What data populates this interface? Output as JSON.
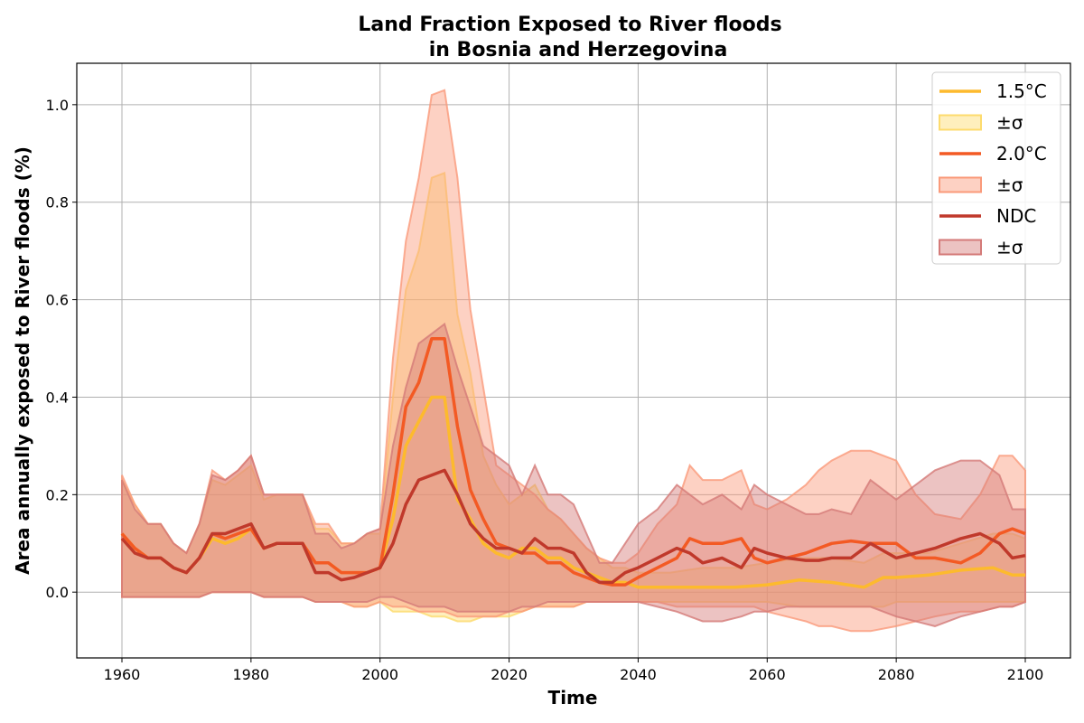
{
  "chart_data": {
    "type": "line",
    "title": "Land Fraction Exposed to River floods",
    "subtitle": "in Bosnia and Herzegovina",
    "xlabel": "Time",
    "ylabel": "Area annually exposed to River floods (%)",
    "xlim": [
      1953,
      2107
    ],
    "ylim": [
      -0.135,
      1.085
    ],
    "xticks": [
      1960,
      1980,
      2000,
      2020,
      2040,
      2060,
      2080,
      2100
    ],
    "yticks": [
      0.0,
      0.2,
      0.4,
      0.6,
      0.8,
      1.0
    ],
    "ytick_labels": [
      "0.0",
      "0.2",
      "0.4",
      "0.6",
      "0.8",
      "1.0"
    ],
    "grid": true,
    "legend_position": "top-right",
    "legend": [
      {
        "label": "1.5°C",
        "kind": "line",
        "series": 0
      },
      {
        "label": "±σ",
        "kind": "band",
        "series": 0
      },
      {
        "label": "2.0°C",
        "kind": "line",
        "series": 1
      },
      {
        "label": "±σ",
        "kind": "band",
        "series": 1
      },
      {
        "label": "NDC",
        "kind": "line",
        "series": 2
      },
      {
        "label": "±σ",
        "kind": "band",
        "series": 2
      }
    ],
    "series": [
      {
        "name": "1.5°C",
        "color": "#FDBA2D",
        "band_color": "#FDDB6D",
        "x": [
          1960,
          1962,
          1964,
          1966,
          1968,
          1970,
          1972,
          1974,
          1976,
          1978,
          1980,
          1982,
          1984,
          1986,
          1988,
          1990,
          1992,
          1994,
          1996,
          1998,
          2000,
          2002,
          2004,
          2006,
          2008,
          2010,
          2012,
          2014,
          2016,
          2018,
          2020,
          2022,
          2024,
          2026,
          2028,
          2030,
          2032,
          2034,
          2036,
          2038,
          2040,
          2045,
          2050,
          2055,
          2060,
          2065,
          2070,
          2075,
          2078,
          2080,
          2085,
          2090,
          2095,
          2098,
          2100
        ],
        "mean": [
          0.12,
          0.09,
          0.07,
          0.07,
          0.05,
          0.04,
          0.07,
          0.11,
          0.1,
          0.11,
          0.13,
          0.09,
          0.1,
          0.1,
          0.1,
          0.06,
          0.06,
          0.04,
          0.04,
          0.04,
          0.05,
          0.15,
          0.3,
          0.35,
          0.4,
          0.4,
          0.19,
          0.15,
          0.1,
          0.08,
          0.07,
          0.09,
          0.09,
          0.07,
          0.07,
          0.05,
          0.04,
          0.03,
          0.02,
          0.02,
          0.01,
          0.01,
          0.01,
          0.01,
          0.015,
          0.025,
          0.02,
          0.01,
          0.03,
          0.03,
          0.035,
          0.045,
          0.05,
          0.035,
          0.035
        ],
        "upper": [
          0.23,
          0.18,
          0.14,
          0.14,
          0.1,
          0.08,
          0.14,
          0.23,
          0.22,
          0.24,
          0.26,
          0.19,
          0.2,
          0.2,
          0.2,
          0.13,
          0.13,
          0.1,
          0.1,
          0.12,
          0.12,
          0.4,
          0.62,
          0.7,
          0.85,
          0.86,
          0.57,
          0.45,
          0.28,
          0.22,
          0.18,
          0.2,
          0.22,
          0.17,
          0.15,
          0.12,
          0.09,
          0.07,
          0.05,
          0.05,
          0.04,
          0.04,
          0.05,
          0.05,
          0.06,
          0.07,
          0.07,
          0.06,
          0.08,
          0.08,
          0.08,
          0.1,
          0.12,
          0.12,
          0.11
        ],
        "lower": [
          -0.01,
          -0.01,
          -0.01,
          -0.01,
          -0.01,
          -0.01,
          -0.01,
          0.0,
          0.0,
          0.0,
          0.0,
          -0.01,
          -0.01,
          -0.01,
          -0.01,
          -0.02,
          -0.02,
          -0.02,
          -0.03,
          -0.03,
          -0.02,
          -0.04,
          -0.04,
          -0.04,
          -0.05,
          -0.05,
          -0.06,
          -0.06,
          -0.05,
          -0.05,
          -0.05,
          -0.04,
          -0.03,
          -0.03,
          -0.03,
          -0.03,
          -0.02,
          -0.02,
          -0.02,
          -0.02,
          -0.02,
          -0.02,
          -0.02,
          -0.02,
          -0.02,
          -0.03,
          -0.03,
          -0.03,
          -0.03,
          -0.02,
          -0.02,
          -0.02,
          -0.02,
          -0.02,
          -0.02
        ]
      },
      {
        "name": "2.0°C",
        "color": "#F35A24",
        "band_color": "#FA9A7A",
        "x": [
          1960,
          1962,
          1964,
          1966,
          1968,
          1970,
          1972,
          1974,
          1976,
          1978,
          1980,
          1982,
          1984,
          1986,
          1988,
          1990,
          1992,
          1994,
          1996,
          1998,
          2000,
          2002,
          2004,
          2006,
          2008,
          2010,
          2012,
          2014,
          2016,
          2018,
          2020,
          2022,
          2024,
          2026,
          2028,
          2030,
          2032,
          2034,
          2036,
          2038,
          2040,
          2043,
          2046,
          2048,
          2050,
          2053,
          2056,
          2058,
          2060,
          2063,
          2066,
          2068,
          2070,
          2073,
          2076,
          2080,
          2083,
          2086,
          2090,
          2093,
          2096,
          2098,
          2100
        ],
        "mean": [
          0.12,
          0.09,
          0.07,
          0.07,
          0.05,
          0.04,
          0.07,
          0.12,
          0.11,
          0.12,
          0.13,
          0.09,
          0.1,
          0.1,
          0.1,
          0.06,
          0.06,
          0.04,
          0.04,
          0.04,
          0.05,
          0.2,
          0.38,
          0.43,
          0.52,
          0.52,
          0.34,
          0.21,
          0.15,
          0.1,
          0.09,
          0.08,
          0.08,
          0.06,
          0.06,
          0.04,
          0.03,
          0.02,
          0.015,
          0.015,
          0.03,
          0.05,
          0.07,
          0.11,
          0.1,
          0.1,
          0.11,
          0.07,
          0.06,
          0.07,
          0.08,
          0.09,
          0.1,
          0.105,
          0.1,
          0.1,
          0.07,
          0.07,
          0.06,
          0.08,
          0.12,
          0.13,
          0.12
        ],
        "upper": [
          0.24,
          0.18,
          0.14,
          0.14,
          0.1,
          0.08,
          0.14,
          0.25,
          0.23,
          0.25,
          0.28,
          0.2,
          0.2,
          0.2,
          0.2,
          0.14,
          0.14,
          0.1,
          0.1,
          0.12,
          0.13,
          0.48,
          0.72,
          0.85,
          1.02,
          1.03,
          0.85,
          0.58,
          0.42,
          0.26,
          0.24,
          0.22,
          0.2,
          0.17,
          0.15,
          0.12,
          0.09,
          0.07,
          0.06,
          0.06,
          0.08,
          0.14,
          0.18,
          0.26,
          0.23,
          0.23,
          0.25,
          0.18,
          0.17,
          0.19,
          0.22,
          0.25,
          0.27,
          0.29,
          0.29,
          0.27,
          0.2,
          0.16,
          0.15,
          0.2,
          0.28,
          0.28,
          0.25
        ],
        "lower": [
          -0.01,
          -0.01,
          -0.01,
          -0.01,
          -0.01,
          -0.01,
          -0.01,
          0.0,
          0.0,
          0.0,
          0.0,
          -0.01,
          -0.01,
          -0.01,
          -0.01,
          -0.02,
          -0.02,
          -0.02,
          -0.03,
          -0.03,
          -0.02,
          -0.03,
          -0.03,
          -0.04,
          -0.04,
          -0.04,
          -0.05,
          -0.05,
          -0.05,
          -0.05,
          -0.04,
          -0.04,
          -0.03,
          -0.03,
          -0.03,
          -0.03,
          -0.02,
          -0.02,
          -0.02,
          -0.02,
          -0.02,
          -0.02,
          -0.03,
          -0.03,
          -0.03,
          -0.03,
          -0.03,
          -0.03,
          -0.04,
          -0.05,
          -0.06,
          -0.07,
          -0.07,
          -0.08,
          -0.08,
          -0.07,
          -0.06,
          -0.05,
          -0.04,
          -0.04,
          -0.03,
          -0.03,
          -0.02
        ]
      },
      {
        "name": "NDC",
        "color": "#C0392B",
        "band_color": "#D47A78",
        "x": [
          1960,
          1962,
          1964,
          1966,
          1968,
          1970,
          1972,
          1974,
          1976,
          1978,
          1980,
          1982,
          1984,
          1986,
          1988,
          1990,
          1992,
          1994,
          1996,
          1998,
          2000,
          2002,
          2004,
          2006,
          2008,
          2010,
          2012,
          2014,
          2016,
          2018,
          2020,
          2022,
          2024,
          2026,
          2028,
          2030,
          2032,
          2034,
          2036,
          2038,
          2040,
          2043,
          2046,
          2048,
          2050,
          2053,
          2056,
          2058,
          2060,
          2063,
          2066,
          2068,
          2070,
          2073,
          2076,
          2080,
          2083,
          2086,
          2090,
          2093,
          2096,
          2098,
          2100
        ],
        "mean": [
          0.11,
          0.08,
          0.07,
          0.07,
          0.05,
          0.04,
          0.07,
          0.12,
          0.12,
          0.13,
          0.14,
          0.09,
          0.1,
          0.1,
          0.1,
          0.04,
          0.04,
          0.025,
          0.03,
          0.04,
          0.05,
          0.1,
          0.18,
          0.23,
          0.24,
          0.25,
          0.2,
          0.14,
          0.11,
          0.09,
          0.09,
          0.08,
          0.11,
          0.09,
          0.09,
          0.08,
          0.04,
          0.02,
          0.02,
          0.04,
          0.05,
          0.07,
          0.09,
          0.08,
          0.06,
          0.07,
          0.05,
          0.09,
          0.08,
          0.07,
          0.065,
          0.065,
          0.07,
          0.07,
          0.1,
          0.07,
          0.08,
          0.09,
          0.11,
          0.12,
          0.1,
          0.07,
          0.075
        ],
        "upper": [
          0.23,
          0.17,
          0.14,
          0.14,
          0.1,
          0.08,
          0.14,
          0.24,
          0.23,
          0.25,
          0.28,
          0.2,
          0.2,
          0.2,
          0.2,
          0.12,
          0.12,
          0.09,
          0.1,
          0.12,
          0.13,
          0.3,
          0.42,
          0.51,
          0.53,
          0.55,
          0.46,
          0.38,
          0.3,
          0.28,
          0.26,
          0.2,
          0.26,
          0.2,
          0.2,
          0.18,
          0.12,
          0.06,
          0.06,
          0.1,
          0.14,
          0.17,
          0.22,
          0.2,
          0.18,
          0.2,
          0.17,
          0.22,
          0.2,
          0.18,
          0.16,
          0.16,
          0.17,
          0.16,
          0.23,
          0.19,
          0.22,
          0.25,
          0.27,
          0.27,
          0.24,
          0.17,
          0.17
        ],
        "lower": [
          -0.01,
          -0.01,
          -0.01,
          -0.01,
          -0.01,
          -0.01,
          -0.01,
          0.0,
          0.0,
          0.0,
          0.0,
          -0.01,
          -0.01,
          -0.01,
          -0.01,
          -0.02,
          -0.02,
          -0.02,
          -0.02,
          -0.02,
          -0.01,
          -0.01,
          -0.02,
          -0.03,
          -0.03,
          -0.03,
          -0.04,
          -0.04,
          -0.04,
          -0.04,
          -0.04,
          -0.03,
          -0.03,
          -0.02,
          -0.02,
          -0.02,
          -0.02,
          -0.02,
          -0.02,
          -0.02,
          -0.02,
          -0.03,
          -0.04,
          -0.05,
          -0.06,
          -0.06,
          -0.05,
          -0.04,
          -0.04,
          -0.03,
          -0.03,
          -0.03,
          -0.03,
          -0.03,
          -0.03,
          -0.05,
          -0.06,
          -0.07,
          -0.05,
          -0.04,
          -0.03,
          -0.03,
          -0.02
        ]
      }
    ]
  }
}
